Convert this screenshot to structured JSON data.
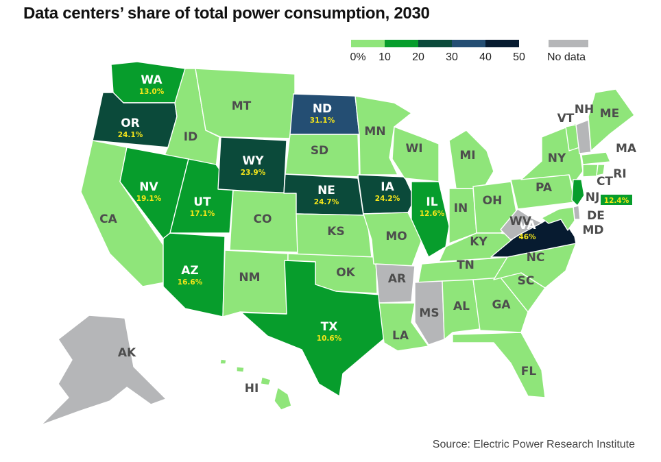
{
  "title": "Data centers’ share of total power consumption, 2030",
  "source": "Source: Electric Power Research Institute",
  "legend": {
    "ticks": [
      "0%",
      "10",
      "20",
      "30",
      "40",
      "50"
    ],
    "bins": [
      {
        "from": 0,
        "to": 10,
        "color": "#8fe57a"
      },
      {
        "from": 10,
        "to": 20,
        "color": "#079d2c"
      },
      {
        "from": 20,
        "to": 30,
        "color": "#0b4a3a"
      },
      {
        "from": 30,
        "to": 40,
        "color": "#244e73"
      },
      {
        "from": 40,
        "to": 50,
        "color": "#071b30"
      }
    ],
    "no_data_label": "No data",
    "no_data_color": "#b5b6b8"
  },
  "states": [
    {
      "abbr": "WA",
      "pct": "13.0%",
      "value": 13.0
    },
    {
      "abbr": "OR",
      "pct": "24.1%",
      "value": 24.1
    },
    {
      "abbr": "CA",
      "value": 5
    },
    {
      "abbr": "ID",
      "value": 5
    },
    {
      "abbr": "NV",
      "pct": "19.1%",
      "value": 19.1
    },
    {
      "abbr": "UT",
      "pct": "17.1%",
      "value": 17.1
    },
    {
      "abbr": "AZ",
      "pct": "16.6%",
      "value": 16.6
    },
    {
      "abbr": "MT",
      "value": 5
    },
    {
      "abbr": "WY",
      "pct": "23.9%",
      "value": 23.9
    },
    {
      "abbr": "CO",
      "value": 5
    },
    {
      "abbr": "NM",
      "value": 5
    },
    {
      "abbr": "ND",
      "pct": "31.1%",
      "value": 31.1
    },
    {
      "abbr": "SD",
      "value": 5
    },
    {
      "abbr": "NE",
      "pct": "24.7%",
      "value": 24.7
    },
    {
      "abbr": "KS",
      "value": 5
    },
    {
      "abbr": "OK",
      "value": 5
    },
    {
      "abbr": "TX",
      "pct": "10.6%",
      "value": 10.6
    },
    {
      "abbr": "MN",
      "value": 5
    },
    {
      "abbr": "IA",
      "pct": "24.2%",
      "value": 24.2
    },
    {
      "abbr": "MO",
      "value": 5
    },
    {
      "abbr": "AR",
      "value": null
    },
    {
      "abbr": "LA",
      "value": 5
    },
    {
      "abbr": "WI",
      "value": 5
    },
    {
      "abbr": "IL",
      "pct": "12.6%",
      "value": 12.6
    },
    {
      "abbr": "MI",
      "value": 5
    },
    {
      "abbr": "IN",
      "value": 5
    },
    {
      "abbr": "OH",
      "value": 5
    },
    {
      "abbr": "KY",
      "value": 5
    },
    {
      "abbr": "TN",
      "value": 5
    },
    {
      "abbr": "MS",
      "value": null
    },
    {
      "abbr": "AL",
      "value": 5
    },
    {
      "abbr": "GA",
      "value": 5
    },
    {
      "abbr": "FL",
      "value": 5
    },
    {
      "abbr": "SC",
      "value": 5
    },
    {
      "abbr": "NC",
      "value": 5
    },
    {
      "abbr": "VA",
      "pct": "46%",
      "value": 46
    },
    {
      "abbr": "WV",
      "value": null
    },
    {
      "abbr": "PA",
      "value": 5
    },
    {
      "abbr": "NY",
      "value": 5
    },
    {
      "abbr": "VT",
      "value": 5
    },
    {
      "abbr": "NH",
      "value": null
    },
    {
      "abbr": "ME",
      "value": 5
    },
    {
      "abbr": "MA",
      "value": 5
    },
    {
      "abbr": "CT",
      "value": 5
    },
    {
      "abbr": "RI",
      "value": 5
    },
    {
      "abbr": "NJ",
      "pct": "12.4%",
      "value": 12.4
    },
    {
      "abbr": "DE",
      "value": null
    },
    {
      "abbr": "MD",
      "value": 5
    },
    {
      "abbr": "AK",
      "value": null
    },
    {
      "abbr": "HI",
      "value": 5
    }
  ]
}
